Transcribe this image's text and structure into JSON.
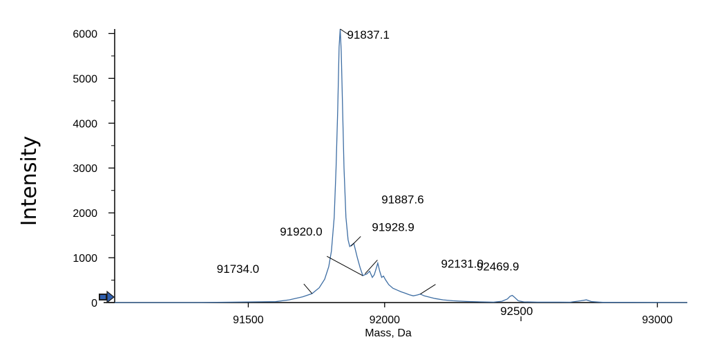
{
  "chart_data": {
    "type": "line",
    "xlabel": "Mass, Da",
    "ylabel": "Intensity",
    "xlim": [
      91010,
      93110
    ],
    "ylim": [
      0,
      6100
    ],
    "x_ticks": [
      {
        "value": 91500,
        "label": "91500"
      },
      {
        "value": 92000,
        "label": "92000"
      },
      {
        "value": 93000,
        "label": "93000"
      }
    ],
    "x_minor_ticks": [
      92500
    ],
    "y_ticks": [
      {
        "value": 0,
        "label": "0"
      },
      {
        "value": 1000,
        "label": "1000"
      },
      {
        "value": 2000,
        "label": "2000"
      },
      {
        "value": 3000,
        "label": "3000"
      },
      {
        "value": 4000,
        "label": "4000"
      },
      {
        "value": 5000,
        "label": "5000"
      },
      {
        "value": 6000,
        "label": "6000"
      }
    ],
    "series": [
      {
        "color": "#3d6da3",
        "points": [
          [
            91010,
            0
          ],
          [
            91300,
            0
          ],
          [
            91600,
            20
          ],
          [
            91650,
            60
          ],
          [
            91700,
            130
          ],
          [
            91734,
            200
          ],
          [
            91760,
            330
          ],
          [
            91780,
            520
          ],
          [
            91795,
            800
          ],
          [
            91805,
            1150
          ],
          [
            91815,
            1900
          ],
          [
            91822,
            3000
          ],
          [
            91828,
            4300
          ],
          [
            91833,
            5700
          ],
          [
            91837,
            6100
          ],
          [
            91841,
            5600
          ],
          [
            91846,
            4300
          ],
          [
            91851,
            3000
          ],
          [
            91858,
            1900
          ],
          [
            91866,
            1400
          ],
          [
            91872,
            1250
          ],
          [
            91887,
            1320
          ],
          [
            91900,
            1000
          ],
          [
            91910,
            780
          ],
          [
            91920,
            600
          ],
          [
            91935,
            640
          ],
          [
            91945,
            700
          ],
          [
            91955,
            560
          ],
          [
            91962,
            620
          ],
          [
            91969,
            760
          ],
          [
            91975,
            880
          ],
          [
            91982,
            700
          ],
          [
            91989,
            560
          ],
          [
            91996,
            590
          ],
          [
            92003,
            510
          ],
          [
            92015,
            400
          ],
          [
            92030,
            320
          ],
          [
            92045,
            280
          ],
          [
            92060,
            240
          ],
          [
            92075,
            210
          ],
          [
            92090,
            175
          ],
          [
            92105,
            150
          ],
          [
            92120,
            170
          ],
          [
            92131,
            190
          ],
          [
            92145,
            150
          ],
          [
            92165,
            120
          ],
          [
            92185,
            90
          ],
          [
            92215,
            60
          ],
          [
            92250,
            40
          ],
          [
            92300,
            25
          ],
          [
            92350,
            15
          ],
          [
            92400,
            10
          ],
          [
            92430,
            30
          ],
          [
            92450,
            80
          ],
          [
            92460,
            140
          ],
          [
            92468,
            160
          ],
          [
            92476,
            120
          ],
          [
            92490,
            40
          ],
          [
            92510,
            15
          ],
          [
            92560,
            10
          ],
          [
            92600,
            10
          ],
          [
            92640,
            10
          ],
          [
            92680,
            8
          ],
          [
            92720,
            40
          ],
          [
            92740,
            60
          ],
          [
            92760,
            20
          ],
          [
            92800,
            5
          ],
          [
            92900,
            5
          ],
          [
            93110,
            0
          ]
        ]
      }
    ],
    "annotations": [
      {
        "text": "91837.1",
        "x": 91837,
        "y": 6100
      },
      {
        "text": "91887.6",
        "x": 91887,
        "y": 1320
      },
      {
        "text": "91920.0",
        "x": 91920,
        "y": 600
      },
      {
        "text": "91928.9",
        "x": 91928,
        "y": 640
      },
      {
        "text": "91734.0",
        "x": 91734,
        "y": 200
      },
      {
        "text": "92131.0",
        "x": 92131,
        "y": 190
      },
      {
        "text": "92469.9",
        "x": 92469,
        "y": 160
      },
      {
        "text": "92500",
        "x": 92500,
        "y": 0
      }
    ]
  }
}
